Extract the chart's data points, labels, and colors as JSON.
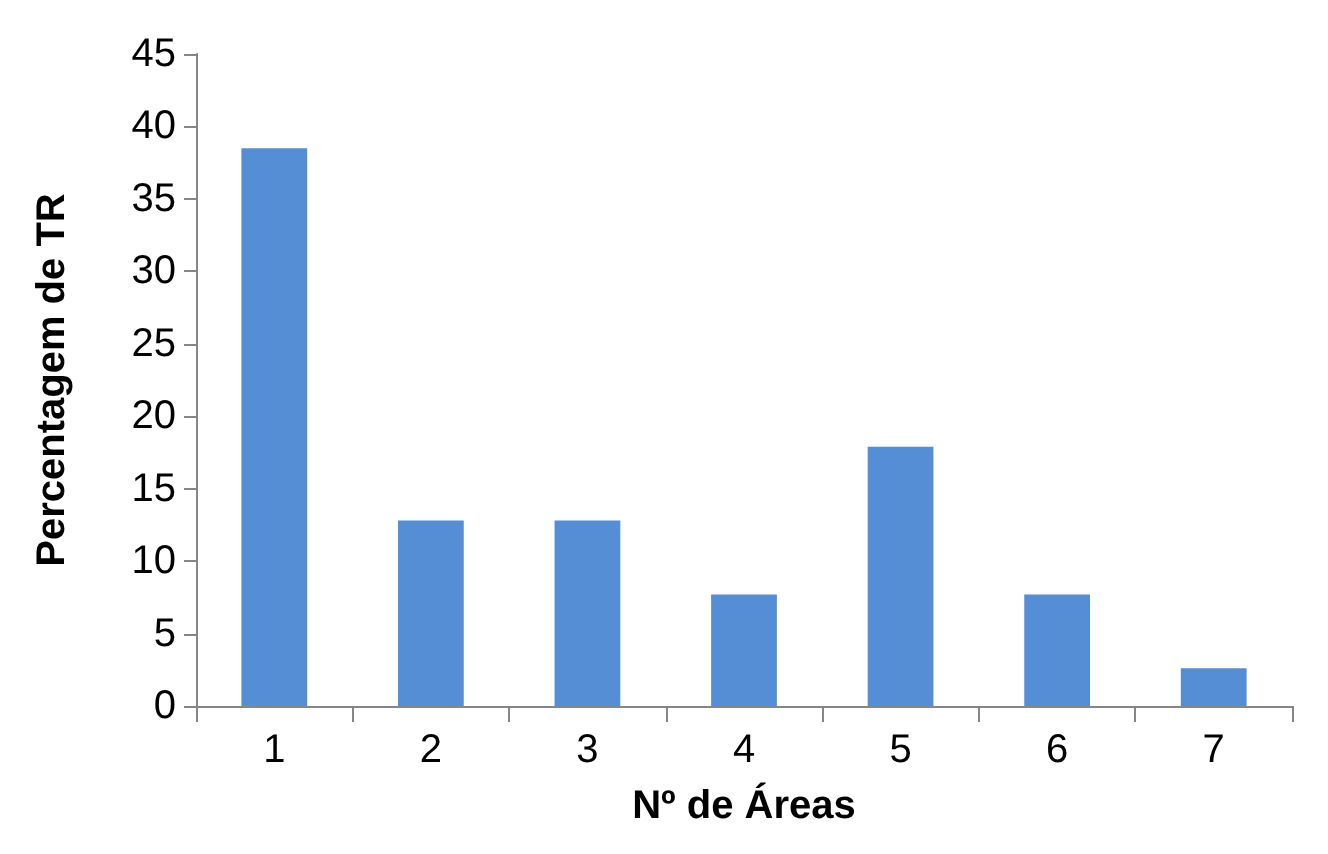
{
  "chart_data": {
    "type": "bar",
    "xlabel": "Nº de Áreas",
    "ylabel": "Percentagem de TR",
    "categories": [
      "1",
      "2",
      "3",
      "4",
      "5",
      "6",
      "7"
    ],
    "values": [
      38.5,
      12.8,
      12.8,
      7.7,
      17.9,
      7.7,
      2.6
    ],
    "color": "#558ed5",
    "ylim": [
      0,
      45
    ],
    "yticks": [
      0,
      5,
      10,
      15,
      20,
      25,
      30,
      35,
      40,
      45
    ],
    "grid": false
  }
}
